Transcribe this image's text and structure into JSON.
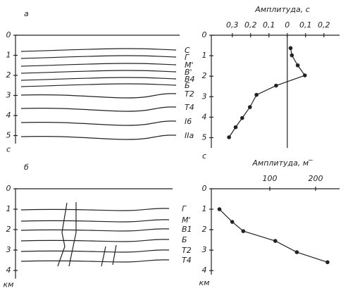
{
  "sections": [
    {
      "panel_label": "а",
      "depth_ticks": [
        0,
        1,
        2,
        3,
        4,
        5
      ],
      "depth_unit": "с",
      "horizons": [
        "С",
        "Г",
        "М'",
        "В'",
        "В4",
        "Б",
        "Т2",
        "Т4",
        "І6",
        "ІІа"
      ]
    },
    {
      "panel_label": "б",
      "depth_ticks": [
        0,
        1,
        2,
        3,
        4
      ],
      "depth_unit": "км",
      "horizons": [
        "Г",
        "М'",
        "В1",
        "Б",
        "Т2",
        "Т4"
      ]
    }
  ],
  "chart_data": [
    {
      "type": "line",
      "title": "Амплитуда, с",
      "x": [
        0.018,
        0.025,
        0.057,
        0.096,
        -0.061,
        -0.168,
        -0.204,
        -0.246,
        -0.282,
        -0.318
      ],
      "values": [
        0.63,
        0.98,
        1.47,
        1.96,
        2.46,
        2.91,
        3.51,
        4.04,
        4.49,
        4.98
      ],
      "xlim": [
        -0.33,
        0.22
      ],
      "xticks": [
        {
          "value": -0.3,
          "label": "0,3"
        },
        {
          "value": -0.2,
          "label": "0,2"
        },
        {
          "value": -0.1,
          "label": "0,1"
        },
        0,
        {
          "value": 0.1,
          "label": "0,1"
        },
        {
          "value": 0.2,
          "label": "0,2"
        }
      ],
      "ylim": [
        0,
        5.5
      ],
      "yticks": [
        0,
        1,
        2,
        3,
        4,
        5
      ],
      "y_label": "с",
      "zero_line": true,
      "y_inverted": true
    },
    {
      "type": "line",
      "title": "Амплитуда, м‾",
      "x": [
        -10,
        18,
        42,
        112,
        159,
        226
      ],
      "values": [
        1.0,
        1.62,
        2.07,
        2.55,
        3.1,
        3.59
      ],
      "xlim": [
        -20,
        260
      ],
      "xticks": [
        100,
        200
      ],
      "ylim": [
        0,
        4.2
      ],
      "yticks": [
        0,
        1,
        2,
        3,
        4
      ],
      "y_label": "км",
      "zero_line": false,
      "y_inverted": true
    }
  ]
}
